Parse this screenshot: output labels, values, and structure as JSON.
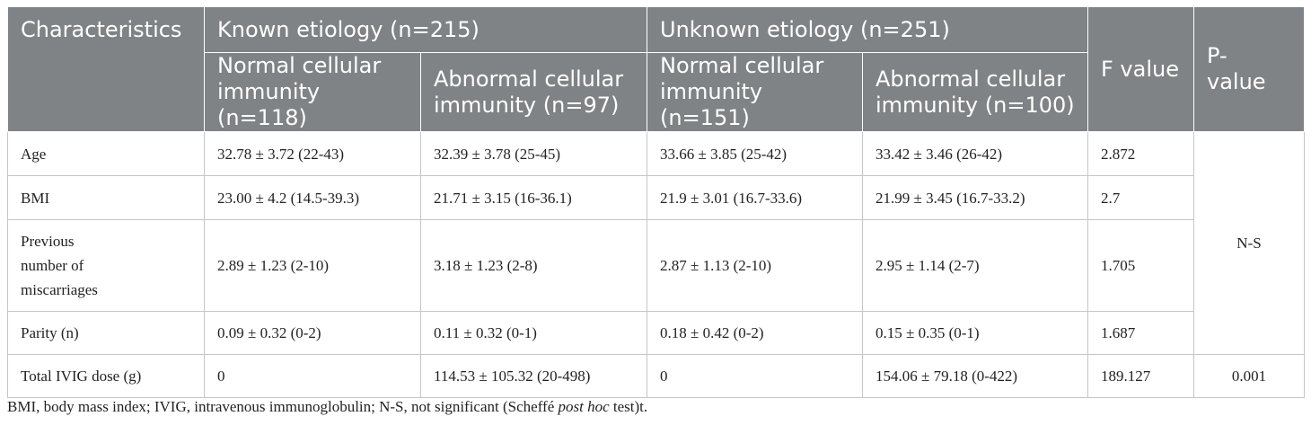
{
  "table": {
    "header": {
      "characteristics": "Characteristics",
      "known_group": "Known etiology (n=215)",
      "unknown_group": "Unknown etiology (n=251)",
      "f_value": "F value",
      "p_value": "P-\nvalue",
      "sub": [
        "Normal cellular immunity (n=118)",
        "Abnormal cellular immunity (n=97)",
        "Normal cellular immunity (n=151)",
        "Abnormal cellular immunity (n=100)"
      ]
    },
    "rows": [
      {
        "label": "Age",
        "cells": [
          "32.78 ± 3.72 (22-43)",
          "32.39 ± 3.78 (25-45)",
          "33.66 ± 3.85 (25-42)",
          "33.42 ± 3.46 (26-42)"
        ],
        "f": "2.872"
      },
      {
        "label": "BMI",
        "cells": [
          "23.00 ± 4.2 (14.5-39.3)",
          "21.71 ± 3.15 (16-36.1)",
          "21.9 ± 3.01 (16.7-33.6)",
          "21.99 ± 3.45 (16.7-33.2)"
        ],
        "f": "2.7"
      },
      {
        "label": "Previous number of miscarriages",
        "cells": [
          "2.89 ± 1.23 (2-10)",
          "3.18 ± 1.23 (2-8)",
          "2.87 ± 1.13 (2-10)",
          "2.95 ± 1.14 (2-7)"
        ],
        "f": "1.705"
      },
      {
        "label": "Parity (n)",
        "cells": [
          "0.09 ± 0.32 (0-2)",
          "0.11 ± 0.32 (0-1)",
          "0.18 ± 0.42 (0-2)",
          "0.15 ± 0.35 (0-1)"
        ],
        "f": "1.687"
      },
      {
        "label": "Total IVIG dose (g)",
        "cells": [
          "0",
          "114.53 ± 105.32 (20-498)",
          "0",
          "154.06 ± 79.18 (0-422)"
        ],
        "f": "189.127",
        "p": "0.001"
      }
    ],
    "merged_p": "N-S"
  },
  "footnote": {
    "before": "BMI, body mass index; IVIG, intravenous immunoglobulin; N-S, not significant (Scheffé ",
    "italic": "post hoc",
    "after": " test)t."
  }
}
